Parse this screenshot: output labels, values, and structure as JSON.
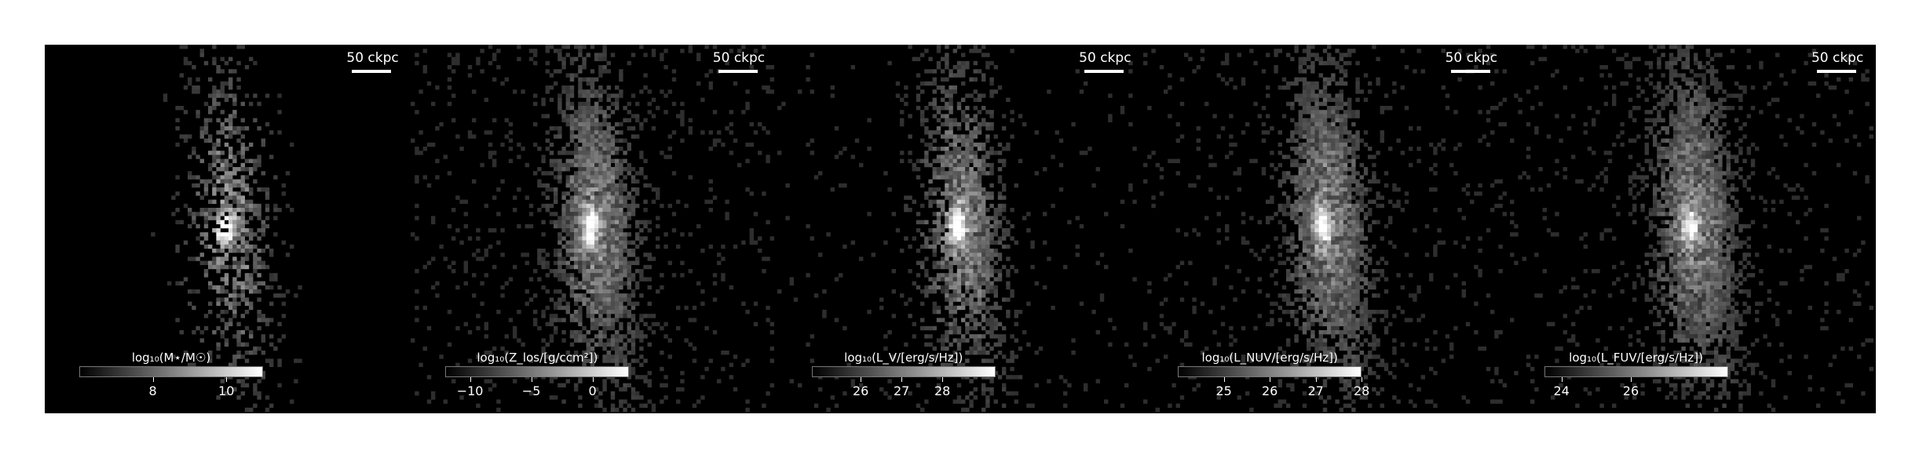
{
  "panels": [
    {
      "scalebar": "50 ckpc",
      "colorbar_title": "log₁₀(M⋆/M☉)",
      "colorbar_range": [
        6.0,
        11.0
      ],
      "ticks": [
        {
          "value": 8,
          "label": "8"
        },
        {
          "value": 10,
          "label": "10"
        }
      ],
      "seed": 11,
      "gain": 0.55,
      "core": 1.0,
      "background_noise": 0.0
    },
    {
      "scalebar": "50 ckpc",
      "colorbar_title": "log₁₀(Z_los/[g/ccm²])",
      "colorbar_range": [
        -12.0,
        3.0
      ],
      "ticks": [
        {
          "value": -10,
          "label": "−10"
        },
        {
          "value": -5,
          "label": "−5"
        },
        {
          "value": 0,
          "label": "0"
        }
      ],
      "seed": 23,
      "gain": 0.95,
      "core": 0.9,
      "background_noise": 0.08
    },
    {
      "scalebar": "50 ckpc",
      "colorbar_title": "log₁₀(L_V/[erg/s/Hz])",
      "colorbar_range": [
        24.8,
        29.3
      ],
      "ticks": [
        {
          "value": 26,
          "label": "26"
        },
        {
          "value": 27,
          "label": "27"
        },
        {
          "value": 28,
          "label": "28"
        }
      ],
      "seed": 37,
      "gain": 0.8,
      "core": 1.0,
      "background_noise": 0.03
    },
    {
      "scalebar": "50 ckpc",
      "colorbar_title": "log₁₀(L_NUV/[erg/s/Hz])",
      "colorbar_range": [
        24.0,
        28.0
      ],
      "ticks": [
        {
          "value": 25,
          "label": "25"
        },
        {
          "value": 26,
          "label": "26"
        },
        {
          "value": 27,
          "label": "27"
        },
        {
          "value": 28,
          "label": "28"
        }
      ],
      "seed": 51,
      "gain": 1.05,
      "core": 0.85,
      "background_noise": 0.07
    },
    {
      "scalebar": "50 ckpc",
      "colorbar_title": "log₁₀(L_FUV/[erg/s/Hz])",
      "colorbar_range": [
        23.5,
        28.8
      ],
      "ticks": [
        {
          "value": 24,
          "label": "24"
        },
        {
          "value": 26,
          "label": "26"
        }
      ],
      "seed": 67,
      "gain": 1.1,
      "core": 0.85,
      "background_noise": 0.07
    }
  ]
}
